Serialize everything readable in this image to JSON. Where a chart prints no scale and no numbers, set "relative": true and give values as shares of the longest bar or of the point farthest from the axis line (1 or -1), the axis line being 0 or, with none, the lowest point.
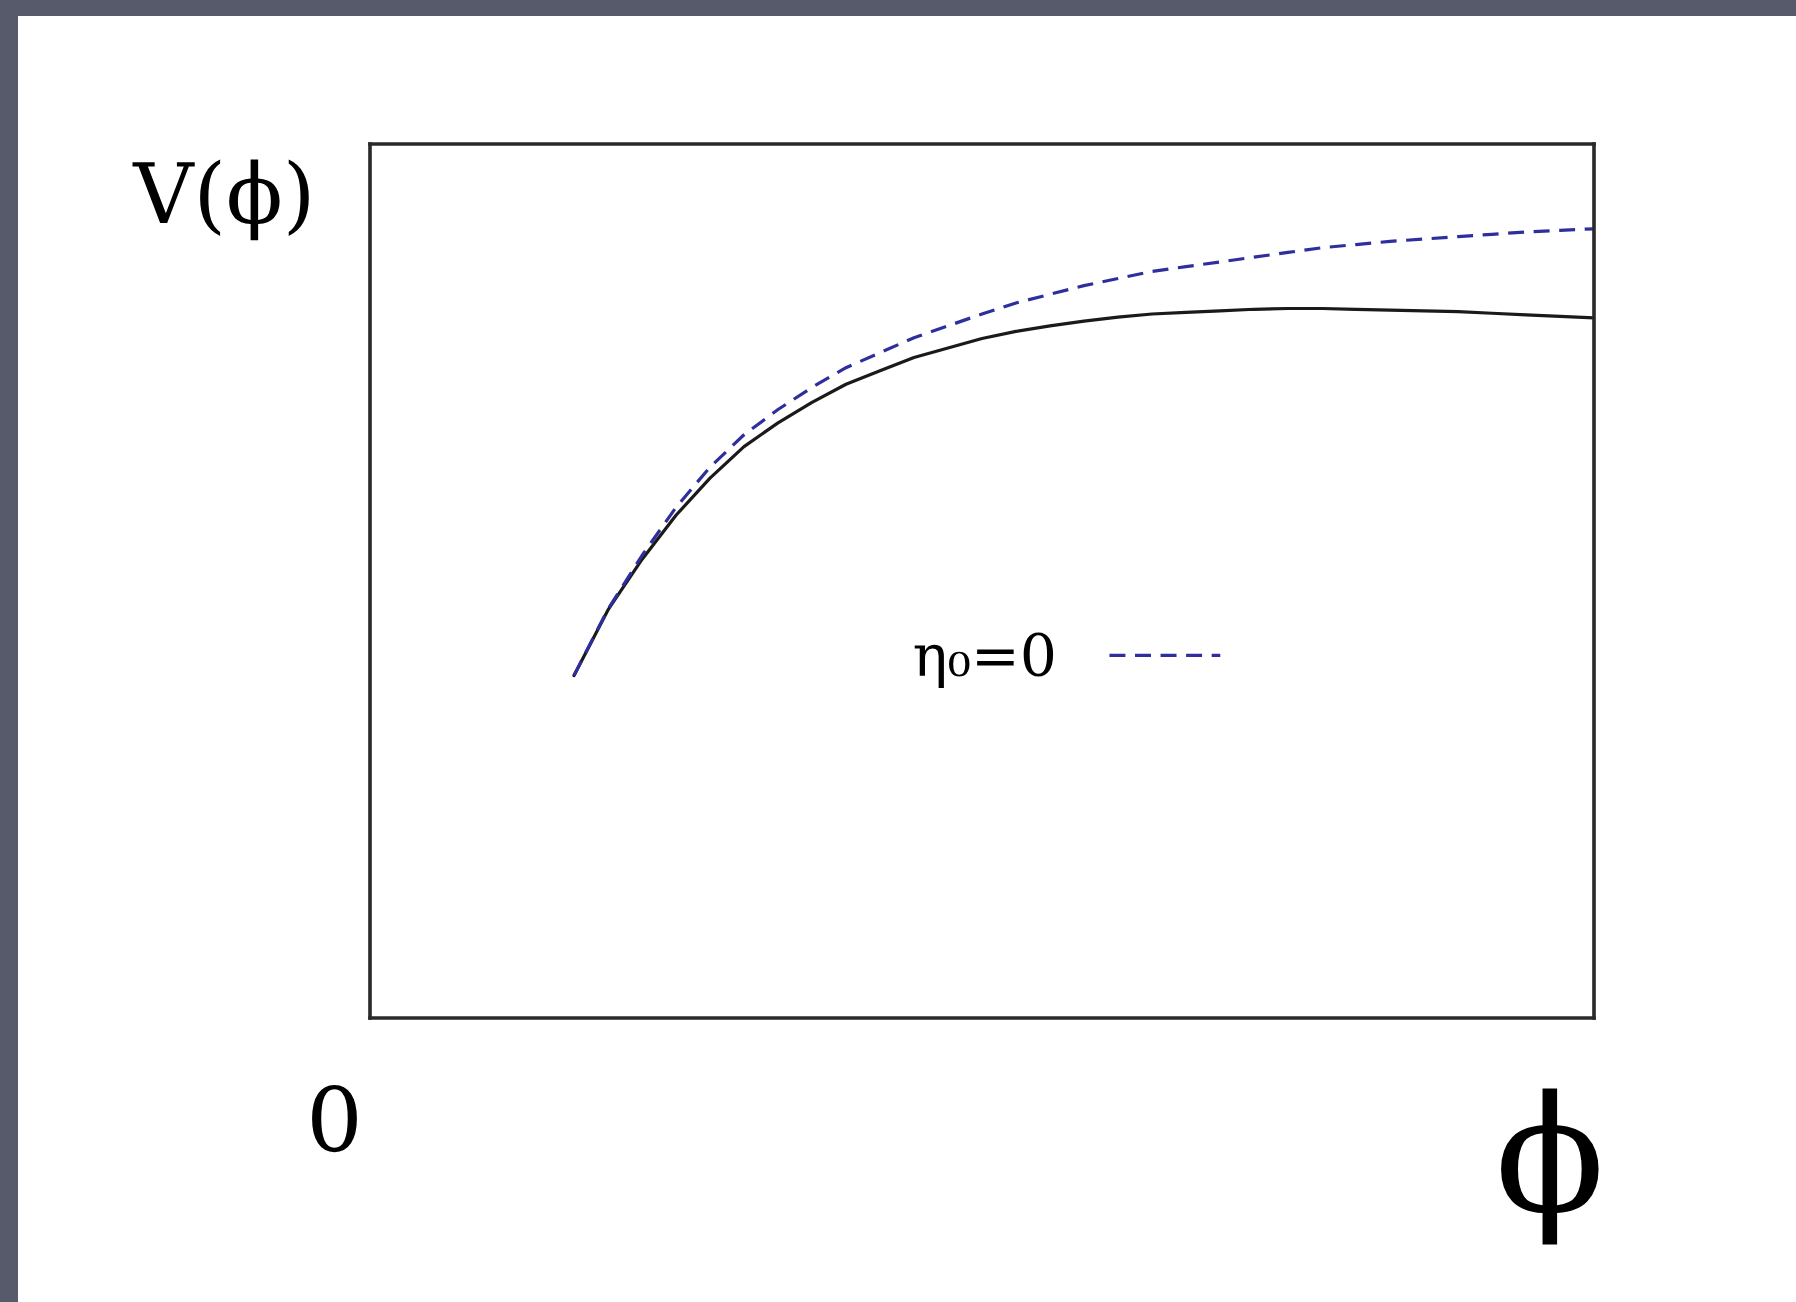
{
  "chart_data": {
    "type": "line",
    "relative": true,
    "xlabel": "ϕ",
    "ylabel": "V(ϕ)",
    "annotations": [
      "0"
    ],
    "legend": "center",
    "categories": [
      null,
      null,
      null,
      null,
      null,
      null,
      null,
      null,
      null,
      null,
      null,
      null,
      null,
      null,
      null,
      null,
      null,
      null,
      null,
      null,
      null,
      null,
      null,
      null,
      null,
      null,
      null,
      null,
      null,
      null,
      null,
      null,
      null,
      null,
      null,
      null,
      null
    ],
    "series": [
      {
        "color": "#1a1a1a",
        "line_style": "solid",
        "values": [
          null,
          null,
          null,
          null,
          null,
          null,
          0.434,
          0.517,
          0.581,
          0.637,
          0.684,
          0.724,
          0.754,
          0.78,
          0.803,
          0.82,
          0.837,
          0.849,
          0.861,
          0.87,
          0.877,
          0.883,
          0.888,
          0.892,
          0.894,
          0.896,
          0.898,
          0.899,
          0.899,
          0.898,
          0.897,
          0.896,
          0.895,
          0.893,
          0.891,
          0.889,
          0.887
        ]
      },
      {
        "name": "η₀=0",
        "color": "#2e2e9e",
        "line_style": "dashed",
        "values": [
          null,
          null,
          null,
          null,
          null,
          null,
          0.434,
          0.518,
          0.586,
          0.647,
          0.698,
          0.739,
          0.771,
          0.799,
          0.824,
          0.843,
          0.862,
          0.877,
          0.892,
          0.906,
          0.917,
          0.928,
          0.937,
          0.946,
          0.952,
          0.958,
          0.964,
          0.97,
          0.976,
          0.98,
          0.984,
          0.987,
          0.99,
          0.993,
          0.996,
          0.998,
          1.0
        ]
      }
    ]
  }
}
